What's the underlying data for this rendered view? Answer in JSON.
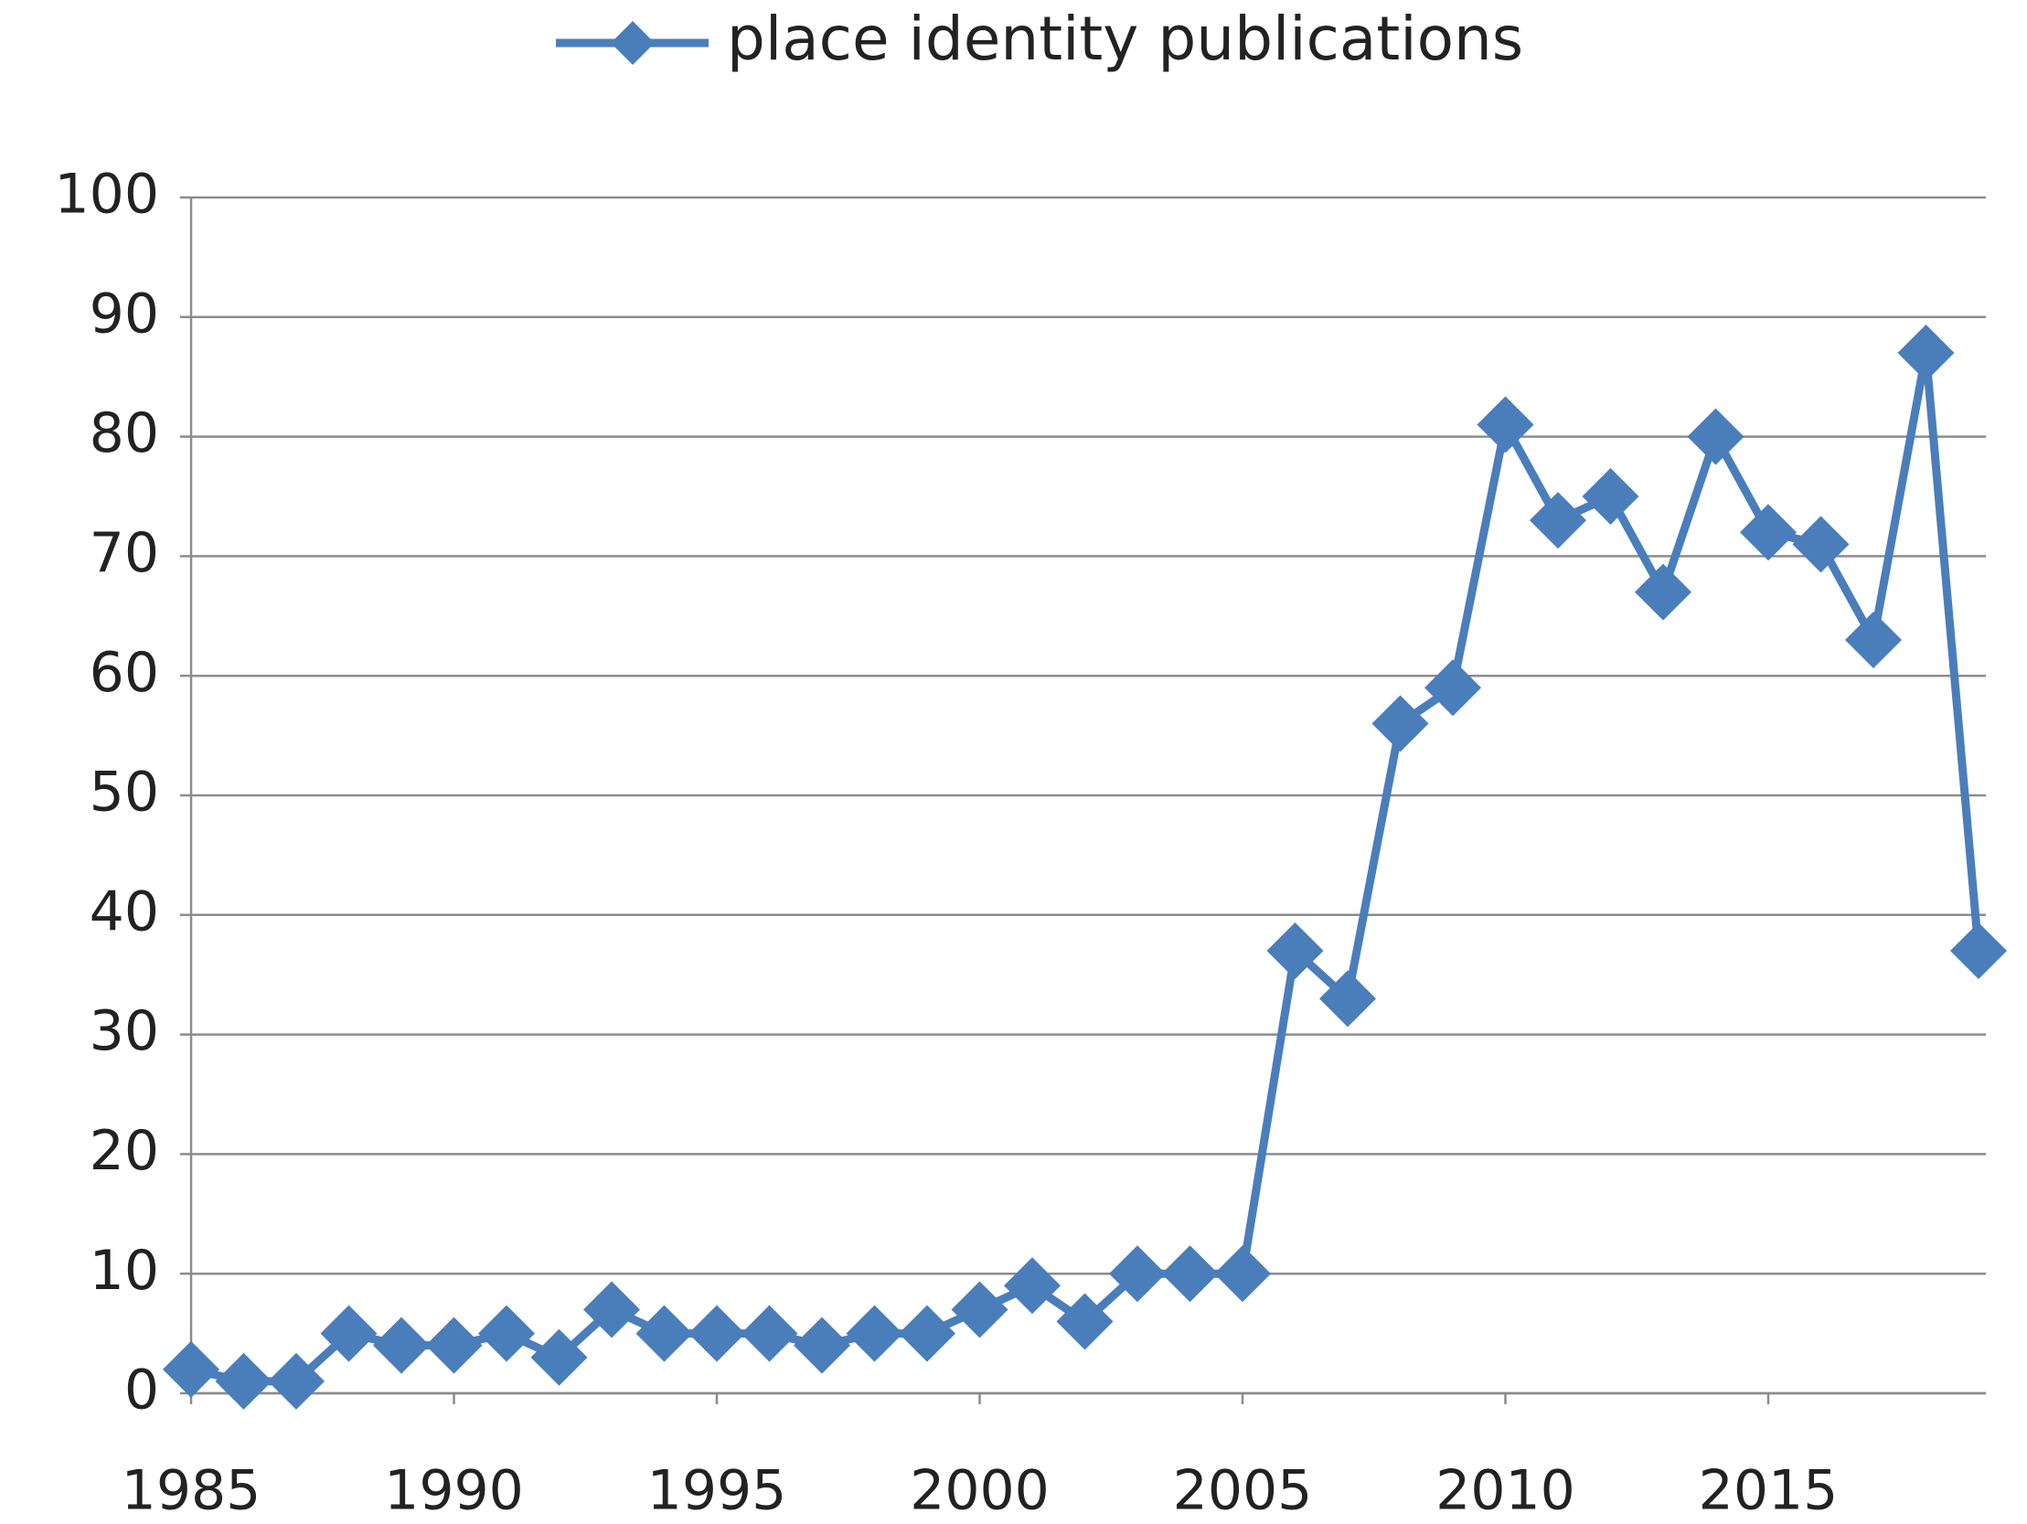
{
  "chart_data": {
    "type": "line",
    "x": [
      1985,
      1986,
      1987,
      1988,
      1989,
      1990,
      1991,
      1992,
      1993,
      1994,
      1995,
      1996,
      1997,
      1998,
      1999,
      2000,
      2001,
      2002,
      2003,
      2004,
      2005,
      2006,
      2007,
      2008,
      2009,
      2010,
      2011,
      2012,
      2013,
      2014,
      2015,
      2016,
      2017,
      2018,
      2019
    ],
    "series": [
      {
        "name": "place identity publications",
        "color": "#4a7ebb",
        "values": [
          2,
          1,
          1,
          5,
          4,
          4,
          5,
          3,
          7,
          5,
          5,
          5,
          4,
          5,
          5,
          7,
          9,
          6,
          10,
          10,
          10,
          37,
          33,
          56,
          59,
          81,
          73,
          75,
          67,
          80,
          72,
          71,
          63,
          87,
          37
        ]
      }
    ],
    "xlim": [
      1985,
      2019
    ],
    "xticks": [
      1985,
      1990,
      1995,
      2000,
      2005,
      2010,
      2015
    ],
    "ylim": [
      0,
      100
    ],
    "yticks": [
      0,
      10,
      20,
      30,
      40,
      50,
      60,
      70,
      80,
      90,
      100
    ],
    "grid": true,
    "legend": "top"
  }
}
